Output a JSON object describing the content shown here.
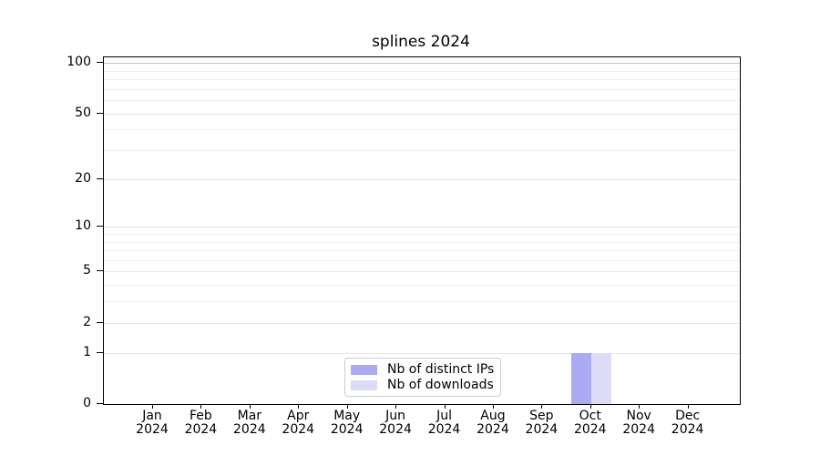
{
  "title": "splines 2024",
  "chart_data": {
    "type": "bar",
    "title": "splines 2024",
    "categories": [
      "Jan",
      "Feb",
      "Mar",
      "Apr",
      "May",
      "Jun",
      "Jul",
      "Aug",
      "Sep",
      "Oct",
      "Nov",
      "Dec"
    ],
    "year_label": "2024",
    "series": [
      {
        "name": "Nb of distinct IPs",
        "color": "#ababf3",
        "values": [
          0,
          0,
          0,
          0,
          0,
          0,
          0,
          0,
          0,
          1,
          0,
          0
        ]
      },
      {
        "name": "Nb of downloads",
        "color": "#dcdcf8",
        "values": [
          0,
          0,
          0,
          0,
          0,
          0,
          0,
          0,
          0,
          1,
          0,
          0
        ]
      }
    ],
    "xlabel": "",
    "ylabel": "",
    "y_scale": "log(1+y)",
    "y_ticks": [
      0,
      1,
      2,
      5,
      10,
      20,
      50,
      100
    ],
    "y_minor_gridlines": [
      3,
      4,
      6,
      7,
      8,
      9,
      30,
      40,
      60,
      70,
      80,
      90
    ],
    "ylim": [
      0,
      108
    ],
    "grid": true,
    "legend_position": "lower center (inside plot)"
  },
  "colors": {
    "grid_minor": "#f0f0f0",
    "grid_major": "#e6e6e6",
    "grid_top": "#c4c4c4",
    "axis": "#000000",
    "legend_border": "#cccccc"
  }
}
